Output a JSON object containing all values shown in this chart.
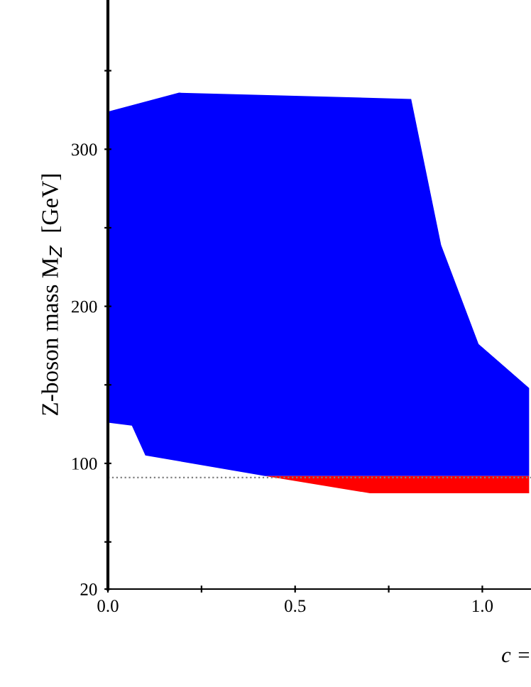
{
  "chart_data": {
    "type": "area",
    "xlabel": "c =",
    "ylabel": "Z-boson mass M$_{Z}$  [GeV]",
    "series": [
      {
        "color": "#0000ff",
        "x": [
          0,
          0.19,
          0.81,
          0.89,
          0.99,
          1.125,
          1.125,
          0.42,
          0.1,
          0.064,
          0
        ],
        "values": [
          324,
          336,
          332,
          239,
          176,
          148,
          92,
          92,
          105,
          124,
          126
        ]
      },
      {
        "color": "#ff0000",
        "x": [
          0.42,
          1.125,
          1.125,
          0.7
        ],
        "values": [
          92,
          92,
          81,
          81
        ]
      }
    ],
    "ref_lines": [
      {
        "axis": "y",
        "value": 91,
        "color": "#808080",
        "line_style": "dotted"
      }
    ],
    "xlim": [
      0,
      1.13
    ],
    "ylim": [
      20,
      395
    ],
    "xticks": [
      {
        "value": 0,
        "label": "0.0"
      },
      {
        "value": 0.25,
        "label": null
      },
      {
        "value": 0.5,
        "label": "0.5"
      },
      {
        "value": 0.75,
        "label": null
      },
      {
        "value": 1.0,
        "label": "1.0"
      }
    ],
    "yticks": [
      20,
      {
        "value": 50,
        "label": null
      },
      100,
      {
        "value": 150,
        "label": null
      },
      200,
      {
        "value": 250,
        "label": null
      },
      300,
      {
        "value": 350,
        "label": null
      }
    ],
    "grid": false,
    "legend": false
  }
}
